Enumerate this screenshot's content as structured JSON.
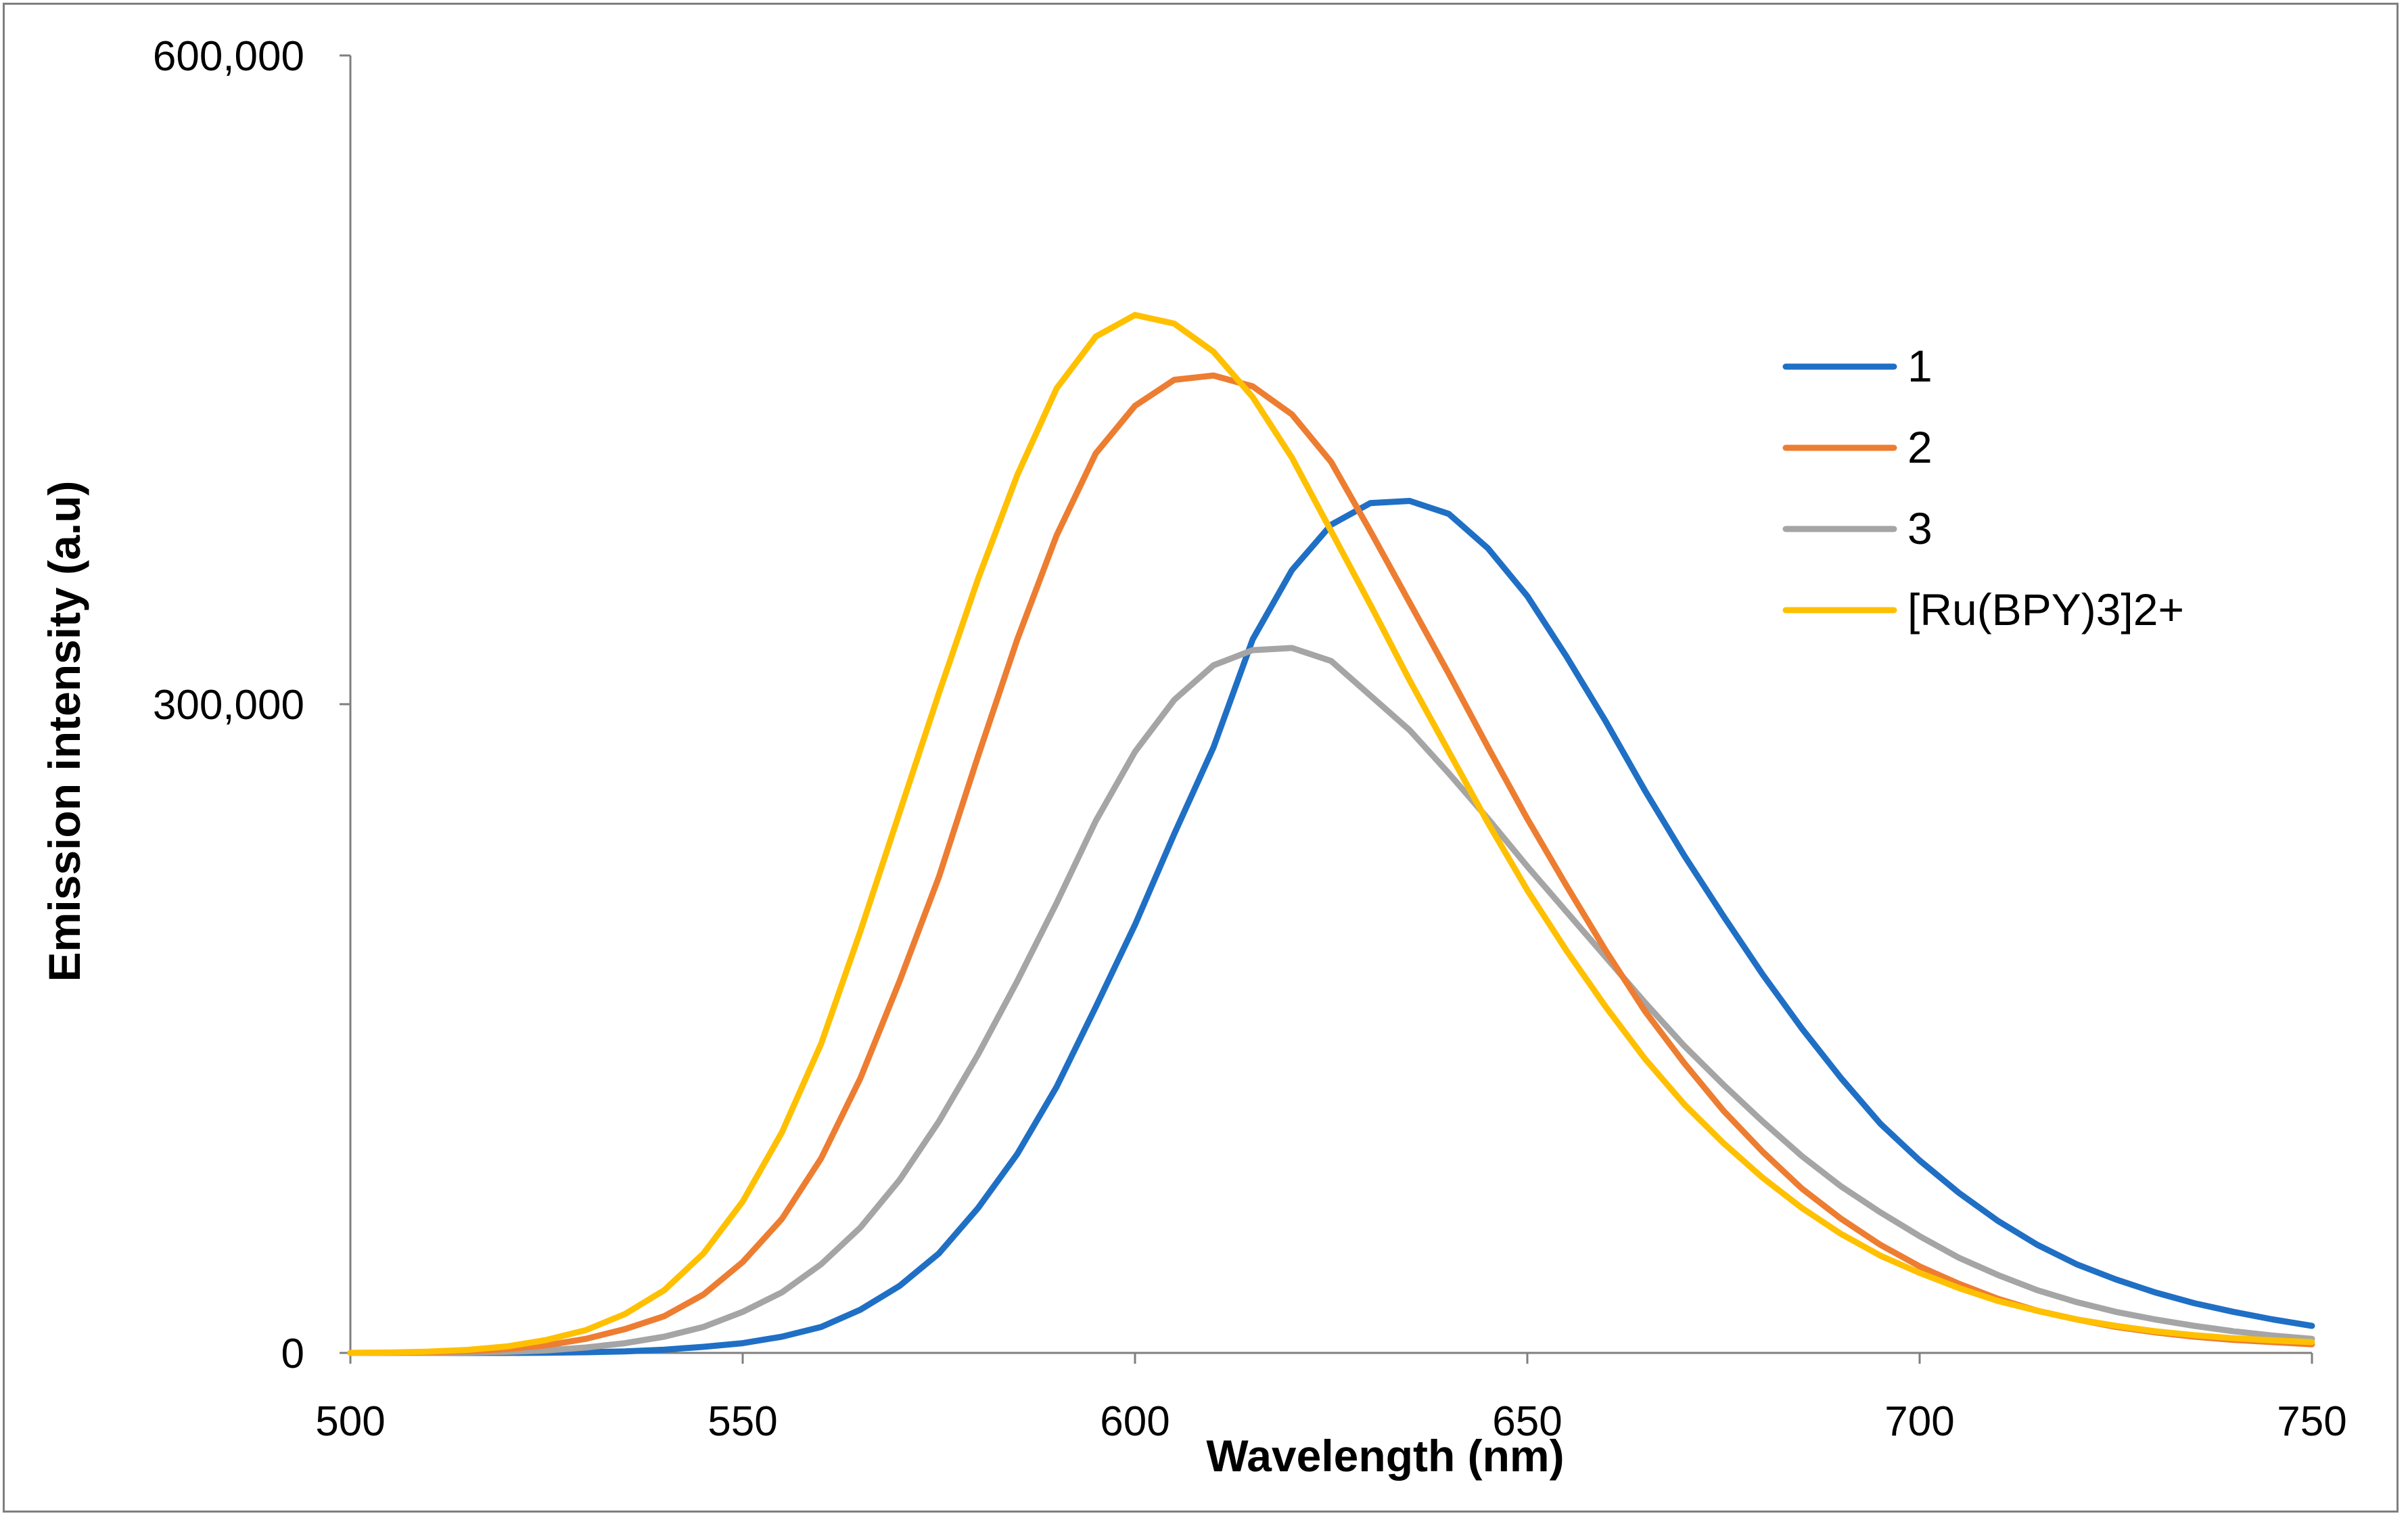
{
  "chart_data": {
    "type": "line",
    "title": "",
    "xlabel": "Wavelength (nm)",
    "ylabel": "Emission intensity (a.u)",
    "xlim": [
      500,
      750
    ],
    "ylim": [
      0,
      600000
    ],
    "xticks": [
      500,
      550,
      600,
      650,
      700,
      750
    ],
    "xtick_labels": [
      "500",
      "550",
      "600",
      "650",
      "700",
      "750"
    ],
    "yticks": [
      0,
      300000,
      600000
    ],
    "ytick_labels": [
      "0",
      "300,000",
      "600,000"
    ],
    "grid": false,
    "legend_position": "right",
    "x": [
      500,
      505,
      510,
      515,
      520,
      525,
      530,
      535,
      540,
      545,
      550,
      555,
      560,
      565,
      570,
      575,
      580,
      585,
      590,
      595,
      600,
      605,
      610,
      615,
      620,
      625,
      630,
      635,
      640,
      645,
      650,
      655,
      660,
      665,
      670,
      675,
      680,
      685,
      690,
      695,
      700,
      705,
      710,
      715,
      720,
      725,
      730,
      735,
      740,
      745,
      750
    ],
    "series": [
      {
        "name": "1",
        "color": "#1f6fc5",
        "values": [
          0,
          0,
          0,
          0,
          0,
          100,
          300,
          700,
          1500,
          2800,
          4500,
          7500,
          12000,
          20000,
          31000,
          46000,
          67000,
          92000,
          123000,
          160000,
          198000,
          240000,
          280000,
          330000,
          362000,
          383000,
          393000,
          394000,
          388000,
          372000,
          350000,
          322000,
          292000,
          260000,
          230000,
          202000,
          175000,
          150000,
          127000,
          106000,
          89000,
          74000,
          61000,
          50000,
          41000,
          34000,
          28000,
          23000,
          19000,
          15500,
          12500
        ]
      },
      {
        "name": "2",
        "color": "#ed7d31",
        "values": [
          0,
          100,
          300,
          800,
          1800,
          3500,
          6500,
          11000,
          17000,
          27000,
          42000,
          62000,
          90000,
          127000,
          172000,
          220000,
          276000,
          330000,
          378000,
          416000,
          438000,
          450000,
          452000,
          447000,
          434000,
          412000,
          380000,
          347000,
          314000,
          280000,
          247000,
          216000,
          186000,
          158000,
          134000,
          112000,
          93000,
          76000,
          62000,
          50000,
          40000,
          32000,
          25000,
          19500,
          15500,
          12000,
          9500,
          7500,
          6000,
          5000,
          4000
        ]
      },
      {
        "name": "3",
        "color": "#a5a5a5",
        "values": [
          0,
          0,
          0,
          200,
          500,
          1200,
          2500,
          4500,
          7500,
          12000,
          19000,
          28000,
          41000,
          58000,
          80000,
          107000,
          138000,
          172000,
          208000,
          246000,
          278000,
          302000,
          318000,
          325000,
          326000,
          320000,
          304000,
          288000,
          268000,
          247000,
          225000,
          204000,
          183000,
          162000,
          142000,
          124000,
          107000,
          91000,
          77000,
          65000,
          54000,
          44000,
          36000,
          29000,
          23500,
          19000,
          15500,
          12500,
          10000,
          8000,
          6500
        ]
      },
      {
        "name": "[Ru(BPY)3]2+",
        "color": "#ffc000",
        "values": [
          0,
          200,
          600,
          1400,
          3000,
          6000,
          10500,
          18000,
          29000,
          46000,
          70000,
          102000,
          143000,
          195000,
          250000,
          305000,
          358000,
          406000,
          446000,
          470000,
          480000,
          476000,
          463000,
          442000,
          414000,
          380000,
          346000,
          311000,
          278000,
          245000,
          214000,
          186000,
          160000,
          136000,
          115000,
          97000,
          81000,
          67000,
          55000,
          45000,
          37000,
          30000,
          24000,
          19500,
          15500,
          12500,
          10000,
          8200,
          6800,
          5800,
          5000
        ]
      }
    ]
  }
}
